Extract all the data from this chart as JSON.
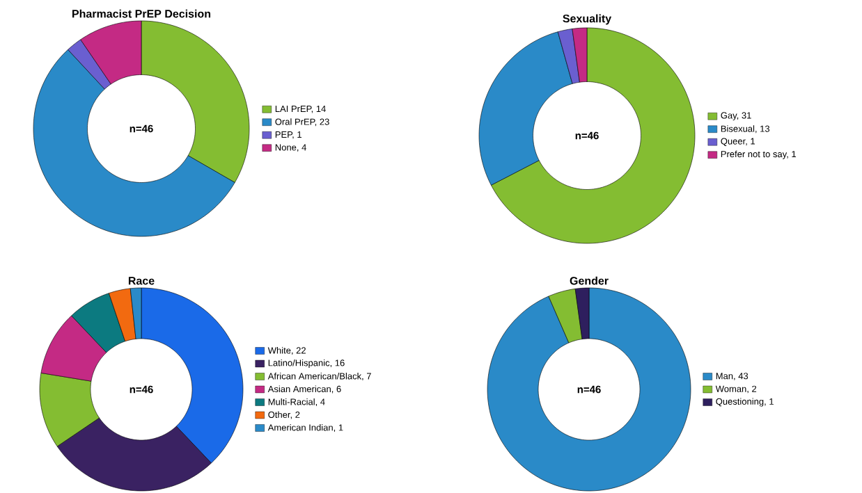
{
  "chart_data": [
    {
      "type": "donut",
      "title": "Pharmacist PrEP Decision",
      "categories": [
        "LAI PrEP, 14",
        "Oral PrEP, 23",
        "PEP, 1",
        "None, 4"
      ],
      "values": [
        14,
        23,
        1,
        4
      ],
      "colors": [
        "#84bd32",
        "#2a8ac8",
        "#6a5fd0",
        "#c42a84"
      ],
      "annotations": [
        "n=46"
      ],
      "legend": "right"
    },
    {
      "type": "donut",
      "title": "Sexuality",
      "categories": [
        "Gay, 31",
        "Bisexual, 13",
        "Queer, 1",
        "Prefer not to say, 1"
      ],
      "values": [
        31,
        13,
        1,
        1
      ],
      "colors": [
        "#84bd32",
        "#2a8ac8",
        "#6a5fd0",
        "#c42a84"
      ],
      "annotations": [
        "n=46"
      ],
      "legend": "right"
    },
    {
      "type": "donut",
      "title": "Race",
      "categories": [
        "White, 22",
        "Latino/Hispanic, 16",
        "African American/Black, 7",
        "Asian American, 6",
        "Multi-Racial, 4",
        "Other, 2",
        "American Indian, 1"
      ],
      "values": [
        22,
        16,
        7,
        6,
        4,
        2,
        1
      ],
      "colors": [
        "#1a6ae8",
        "#3a2262",
        "#84bd32",
        "#c42a84",
        "#0c7a80",
        "#f26a10",
        "#2a8ac8"
      ],
      "annotations": [
        "n=46"
      ],
      "legend": "right"
    },
    {
      "type": "donut",
      "title": "Gender",
      "categories": [
        "Man, 43",
        "Woman, 2",
        "Questioning, 1"
      ],
      "values": [
        43,
        2,
        1
      ],
      "colors": [
        "#2a8ac8",
        "#84bd32",
        "#2e1f5e"
      ],
      "annotations": [
        "n=46"
      ],
      "legend": "right"
    }
  ]
}
